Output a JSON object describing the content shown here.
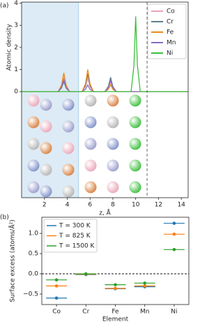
{
  "chart_data": [
    {
      "type": "line",
      "panel_label": "(a)",
      "ylabel": "Atomic density",
      "xlabel": "z, Å",
      "x": [
        0,
        3.2,
        3.5,
        3.7,
        3.9,
        4.2,
        5.3,
        5.6,
        5.8,
        6.0,
        6.3,
        7.3,
        7.6,
        7.8,
        8.0,
        8.3,
        9.6,
        9.85,
        10,
        10.15,
        10.4,
        14.6
      ],
      "series": [
        {
          "name": "Co",
          "color": "#e8a6b8",
          "values": [
            0,
            0,
            0.26,
            0.75,
            0.26,
            0,
            0,
            0.21,
            0.6,
            0.21,
            0,
            0,
            0.14,
            0.4,
            0.14,
            0,
            0,
            0,
            0,
            0,
            0,
            0
          ]
        },
        {
          "name": "Cr",
          "color": "#5e7f8c",
          "values": [
            0,
            0,
            0.16,
            0.45,
            0.16,
            0,
            0,
            0.28,
            0.8,
            0.28,
            0,
            0,
            0.23,
            0.65,
            0.23,
            0,
            0,
            0,
            0,
            0,
            0,
            0
          ]
        },
        {
          "name": "Fe",
          "color": "#ee8a1a",
          "values": [
            0,
            0,
            0.3,
            0.85,
            0.3,
            0,
            0,
            0.35,
            1.0,
            0.35,
            0,
            0,
            0.1,
            0.3,
            0.1,
            0,
            0,
            0,
            0,
            0,
            0,
            0
          ]
        },
        {
          "name": "Mn",
          "color": "#8a6cc0",
          "values": [
            0,
            0,
            0.19,
            0.55,
            0.19,
            0,
            0,
            0.1,
            0.3,
            0.1,
            0,
            0,
            0.18,
            0.5,
            0.18,
            0,
            0,
            0,
            0,
            0,
            0,
            0
          ]
        },
        {
          "name": "Ni",
          "color": "#3cbf3c",
          "values": [
            0,
            0,
            0,
            0,
            0,
            0,
            0,
            0,
            0,
            0,
            0,
            0,
            0,
            0,
            0,
            0,
            0,
            1.2,
            3.4,
            1.2,
            0,
            0
          ]
        }
      ],
      "xlim": [
        0,
        14.6
      ],
      "ylim": [
        -4.8,
        4.05
      ],
      "xticks": [
        2,
        4,
        6,
        8,
        10,
        12,
        14
      ],
      "yticks": [
        0,
        1,
        2,
        3,
        4
      ],
      "shade_xlim": [
        0,
        5
      ],
      "shade_color": "#dcebf5",
      "vline": 11,
      "legend": "upper right"
    },
    {
      "type": "errorbar",
      "panel_label": "(b)",
      "ylabel": "Surface excess (atoms/Å²)",
      "xlabel": "Element",
      "categories": [
        "Co",
        "Cr",
        "Fe",
        "Mn",
        "Ni"
      ],
      "series": [
        {
          "name": "T = 300 K",
          "color": "#1f77b4",
          "values": [
            -0.6,
            -0.02,
            -0.37,
            -0.32,
            1.25
          ]
        },
        {
          "name": "T = 825 K",
          "color": "#ff7f0e",
          "values": [
            -0.3,
            -0.01,
            -0.36,
            -0.3,
            0.98
          ]
        },
        {
          "name": "T = 1500 K",
          "color": "#2ca02c",
          "values": [
            -0.15,
            0.0,
            -0.27,
            -0.23,
            0.6
          ]
        }
      ],
      "ylim": [
        -0.76,
        1.4
      ],
      "yticks": [
        {
          "value": -0.5,
          "label": "−0.5"
        },
        {
          "value": 0,
          "label": "0.0"
        },
        0.5,
        {
          "value": 1,
          "label": "1.0"
        }
      ],
      "hline": 0,
      "legend": "upper left"
    }
  ]
}
